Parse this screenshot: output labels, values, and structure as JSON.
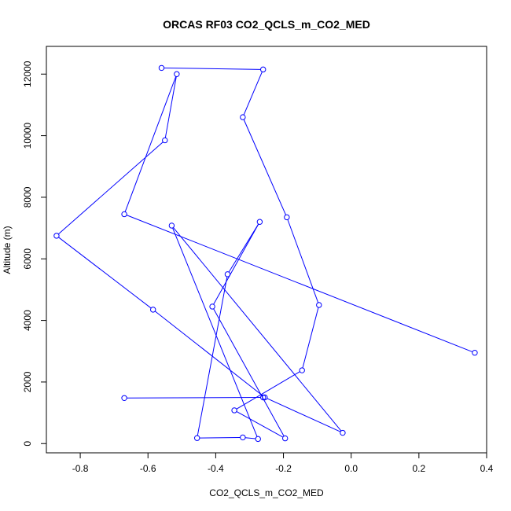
{
  "chart_data": {
    "type": "line",
    "title": "ORCAS RF03 CO2_QCLS_m_CO2_MED",
    "xlabel": "CO2_QCLS_m_CO2_MED",
    "ylabel": "Altitude (m)",
    "xlim": [
      -0.9,
      0.4
    ],
    "ylim": [
      -300,
      12900
    ],
    "xticks": [
      -0.8,
      -0.6,
      -0.4,
      -0.2,
      0.0,
      0.2,
      0.4
    ],
    "xtick_labels": [
      "-0.8",
      "-0.6",
      "-0.4",
      "-0.2",
      "0.0",
      "0.2",
      "0.4"
    ],
    "yticks": [
      0,
      2000,
      4000,
      6000,
      8000,
      10000,
      12000
    ],
    "ytick_labels": [
      "0",
      "2000",
      "4000",
      "6000",
      "8000",
      "10000",
      "12000"
    ],
    "grid": false,
    "legend": "none",
    "colors": {
      "series": "#0000ff",
      "axes": "#000000"
    },
    "series": [
      {
        "x": [
          0.365,
          -0.67,
          -0.515,
          -0.55,
          -0.87,
          -0.585,
          -0.255,
          -0.025,
          -0.53,
          -0.275,
          -0.32,
          -0.455,
          -0.365,
          -0.27,
          -0.41,
          -0.195,
          -0.345,
          -0.145,
          -0.095,
          -0.19,
          -0.32,
          -0.26,
          -0.56
        ],
        "y": [
          2950,
          7450,
          12000,
          9850,
          6750,
          4350,
          1500,
          350,
          7080,
          150,
          200,
          180,
          5500,
          7200,
          4450,
          170,
          1080,
          2380,
          4500,
          7350,
          10600,
          12150,
          12200
        ]
      },
      {
        "x": [
          -0.67,
          -0.26
        ],
        "y": [
          1480,
          1500
        ]
      }
    ]
  }
}
